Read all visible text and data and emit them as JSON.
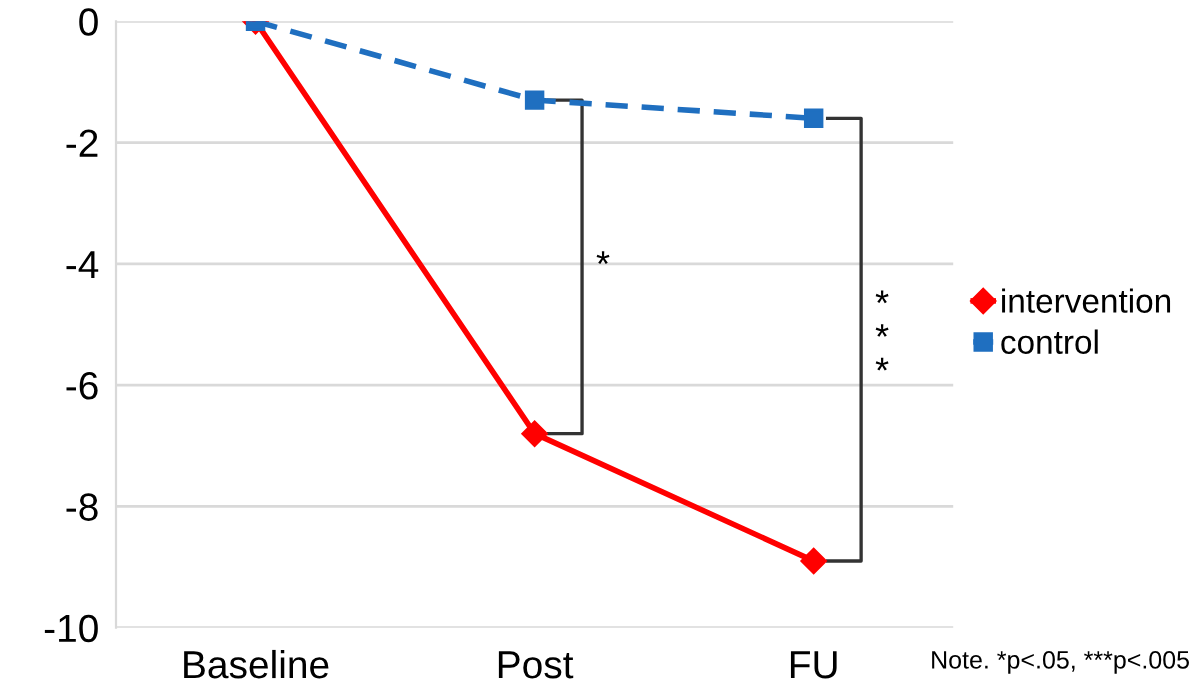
{
  "chart_data": {
    "type": "line",
    "categories": [
      "Baseline",
      "Post",
      "FU"
    ],
    "series": [
      {
        "name": "intervention",
        "color": "#ff0000",
        "values": [
          0,
          -6.8,
          -8.9
        ],
        "marker": "diamond",
        "line_style": "solid"
      },
      {
        "name": "control",
        "color": "#1f6fc0",
        "values": [
          0,
          -1.3,
          -1.6
        ],
        "marker": "square",
        "line_style": "dashed"
      }
    ],
    "ylim": [
      -10,
      0
    ],
    "yticks": [
      -10,
      -8,
      -6,
      -4,
      -2,
      0
    ],
    "grid": "y",
    "legend": "right",
    "annotations": [
      "*",
      "***",
      "Note. *p<.05, ***p<.005"
    ]
  }
}
